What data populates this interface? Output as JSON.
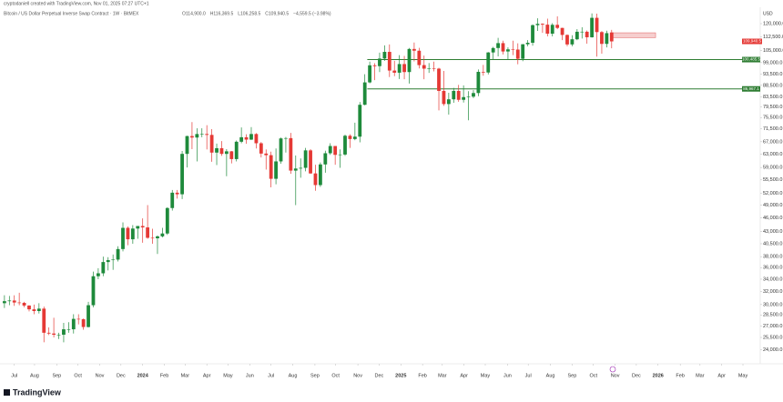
{
  "header": {
    "author_line": "cryptodaniell created with TradingView.com, Nov 01, 2025 07:27 UTC+1",
    "footer_brand": "TradingView"
  },
  "chart_data": {
    "type": "candlestick",
    "title": "Bitcoin / US Dollar Perpetual Inverse Swap Contract · 1W · BitMEX",
    "ohlc_text": [
      "O114,900.0",
      "H116,369.5",
      "L106,258.5",
      "C109,940.5",
      "−4,559.5 (−3.98%)"
    ],
    "currency": "USD",
    "log_scale": true,
    "up_color": "#1e8a3b",
    "down_color": "#e53935",
    "open": [
      30200,
      30500,
      30600,
      30300,
      30250,
      29850,
      29300,
      29050,
      29400,
      26100,
      26000,
      25850,
      25850,
      26550,
      26550,
      27950,
      27900,
      26850,
      29900,
      34500,
      35000,
      37000,
      37350,
      37450,
      39450,
      43800,
      41400,
      43650,
      44200,
      43900,
      41700,
      41600,
      42000,
      42600,
      48300,
      52100,
      51700,
      63100,
      68900,
      68400,
      69600,
      69600,
      69300,
      63500,
      64900,
      63100,
      63900,
      61500,
      67000,
      68500,
      67700,
      69600,
      66500,
      63200,
      62700,
      55800,
      60800,
      68100,
      68200,
      58100,
      58700,
      58900,
      64200,
      57300,
      54100,
      59900,
      63300,
      65600,
      62800,
      62900,
      69000,
      67900,
      68700,
      80400,
      89800,
      97700,
      97300,
      101000,
      104400,
      95200,
      94200,
      98300,
      94500,
      105900,
      105000,
      97800,
      96100,
      96300,
      96100,
      86100,
      80700,
      82600,
      86100,
      82400,
      83500,
      83700,
      85200,
      94600,
      94300,
      104100,
      106400,
      109000,
      104600,
      105700,
      105600,
      100900,
      108400,
      109200,
      119100,
      119900,
      119400,
      114200,
      119300,
      117500,
      113500,
      108300,
      111100,
      115300,
      115300,
      112200,
      123500,
      115100,
      108600,
      114900
    ],
    "high": [
      31400,
      31300,
      31400,
      31800,
      30400,
      29900,
      30000,
      30200,
      29700,
      26800,
      28100,
      26100,
      27400,
      27500,
      28600,
      28600,
      28000,
      30400,
      35300,
      35900,
      38000,
      37900,
      38400,
      40000,
      45000,
      44100,
      44400,
      44200,
      45900,
      49000,
      43600,
      42200,
      43800,
      48500,
      52800,
      52800,
      64000,
      69000,
      73800,
      71600,
      71600,
      72700,
      71300,
      66400,
      67200,
      64600,
      64000,
      67400,
      71900,
      69500,
      72000,
      69900,
      66900,
      64500,
      63800,
      64800,
      68400,
      68600,
      70000,
      62600,
      61700,
      65000,
      64600,
      59800,
      60500,
      64100,
      66500,
      65600,
      64500,
      69400,
      69500,
      73600,
      81500,
      93500,
      99500,
      98700,
      104000,
      107800,
      108300,
      99900,
      102700,
      102300,
      106400,
      109300,
      106500,
      102500,
      98800,
      99500,
      96500,
      95000,
      85300,
      87400,
      88700,
      88500,
      86000,
      86400,
      95700,
      97900,
      104300,
      107000,
      111900,
      110300,
      106800,
      110300,
      108900,
      108500,
      110600,
      119500,
      123200,
      120200,
      123000,
      120300,
      124400,
      117600,
      113800,
      113300,
      116800,
      117900,
      116000,
      126200,
      126100,
      115700,
      115900,
      116369.5
    ],
    "low": [
      29500,
      29900,
      29800,
      29900,
      29600,
      29000,
      28600,
      28700,
      24900,
      25800,
      25500,
      25300,
      24900,
      26100,
      26000,
      27200,
      26500,
      26800,
      29600,
      34000,
      34500,
      35500,
      35600,
      37100,
      39000,
      40200,
      40500,
      41500,
      40700,
      41500,
      40500,
      38500,
      41800,
      42300,
      47700,
      50600,
      50500,
      59000,
      64600,
      60800,
      68500,
      64500,
      60700,
      59700,
      62500,
      56500,
      60200,
      60800,
      66500,
      66300,
      67600,
      64800,
      62000,
      58400,
      53500,
      54300,
      60100,
      63500,
      57200,
      49000,
      56100,
      57900,
      57200,
      52600,
      53600,
      57500,
      62800,
      59800,
      58900,
      62500,
      65000,
      67500,
      66800,
      80200,
      89400,
      90800,
      94500,
      99900,
      92200,
      92600,
      91300,
      91200,
      89300,
      99600,
      96200,
      91200,
      94100,
      94800,
      78200,
      80000,
      76600,
      81200,
      81600,
      81300,
      74500,
      83100,
      83900,
      92800,
      93400,
      100700,
      102100,
      103100,
      100400,
      102700,
      98200,
      99700,
      107300,
      107600,
      115800,
      114700,
      112700,
      112700,
      116800,
      110600,
      107300,
      107300,
      110600,
      111500,
      108700,
      112000,
      102000,
      103500,
      106700,
      106258.5
    ],
    "close": [
      30500,
      30600,
      30300,
      30250,
      29850,
      29300,
      29050,
      29400,
      26100,
      26000,
      25850,
      25850,
      26550,
      26550,
      27950,
      27900,
      26850,
      29900,
      34500,
      35000,
      37000,
      37350,
      37450,
      39450,
      43800,
      41400,
      43650,
      44200,
      43900,
      41700,
      41600,
      42000,
      42600,
      48300,
      52100,
      51700,
      63100,
      68900,
      68400,
      69600,
      69600,
      69300,
      63500,
      64900,
      63100,
      63900,
      61500,
      67000,
      68500,
      67700,
      69600,
      66500,
      63200,
      62700,
      55800,
      60800,
      68100,
      68200,
      58100,
      58700,
      58900,
      64200,
      57300,
      54100,
      59900,
      63300,
      65600,
      62800,
      62900,
      69000,
      67900,
      68700,
      80400,
      89800,
      97700,
      97300,
      101000,
      104400,
      95200,
      94200,
      98300,
      94500,
      105900,
      105000,
      97800,
      96100,
      96300,
      96100,
      86100,
      80700,
      82600,
      86100,
      82400,
      83500,
      83700,
      85200,
      94600,
      94300,
      104100,
      106400,
      109000,
      104600,
      105700,
      105600,
      100900,
      108400,
      109200,
      119100,
      119900,
      119400,
      114200,
      119300,
      117500,
      113500,
      108300,
      111100,
      115300,
      115300,
      112200,
      123500,
      115100,
      108600,
      114500,
      109940.5
    ],
    "last_price_label": "109,940.5",
    "levels": [
      {
        "value": 100485.5,
        "label": "100,485.5",
        "start_x": 73.5,
        "color": "#2e7d32"
      },
      {
        "value": 86967.1,
        "label": "86,967.1",
        "start_x": 73.5,
        "color": "#2e7d32"
      }
    ],
    "zone": {
      "low": 112000,
      "high": 114700,
      "start_x": 123,
      "end_x": 131.9,
      "color": "#e57373"
    },
    "xlim": [
      -0.9,
      153.1
    ],
    "xticks": [
      {
        "value": 2,
        "label": "Jul"
      },
      {
        "value": 6.1,
        "label": "Aug"
      },
      {
        "value": 10.6,
        "label": "Sep"
      },
      {
        "value": 14.9,
        "label": "Oct"
      },
      {
        "value": 19.3,
        "label": "Nov"
      },
      {
        "value": 23.6,
        "label": "Dec"
      },
      {
        "value": 28,
        "label": "2024"
      },
      {
        "value": 32.4,
        "label": "Feb"
      },
      {
        "value": 36.6,
        "label": "Mar"
      },
      {
        "value": 41,
        "label": "Apr"
      },
      {
        "value": 45.3,
        "label": "May"
      },
      {
        "value": 49.7,
        "label": "Jun"
      },
      {
        "value": 54,
        "label": "Jul"
      },
      {
        "value": 58.4,
        "label": "Aug"
      },
      {
        "value": 62.9,
        "label": "Sep"
      },
      {
        "value": 67.1,
        "label": "Oct"
      },
      {
        "value": 71.6,
        "label": "Nov"
      },
      {
        "value": 75.9,
        "label": "Dec"
      },
      {
        "value": 80.3,
        "label": "2025"
      },
      {
        "value": 84.7,
        "label": "Feb"
      },
      {
        "value": 88.7,
        "label": "Mar"
      },
      {
        "value": 93.1,
        "label": "Apr"
      },
      {
        "value": 97.4,
        "label": "May"
      },
      {
        "value": 101.9,
        "label": "Jun"
      },
      {
        "value": 106.1,
        "label": "Jul"
      },
      {
        "value": 110.6,
        "label": "Aug"
      },
      {
        "value": 115,
        "label": "Sep"
      },
      {
        "value": 119.3,
        "label": "Oct"
      },
      {
        "value": 123.7,
        "label": "Nov"
      },
      {
        "value": 128,
        "label": "Dec"
      },
      {
        "value": 132.4,
        "label": "2026"
      },
      {
        "value": 136.9,
        "label": "Feb"
      },
      {
        "value": 140.9,
        "label": "Mar"
      },
      {
        "value": 145.3,
        "label": "Apr"
      },
      {
        "value": 149.6,
        "label": "May"
      }
    ],
    "ylim": [
      22900,
      130100
    ],
    "yticks": [
      {
        "value": 120000,
        "label": "120,000.0"
      },
      {
        "value": 112500,
        "label": "112,500.0"
      },
      {
        "value": 105000,
        "label": "105,000.0"
      },
      {
        "value": 99000,
        "label": "99,000.0"
      },
      {
        "value": 93500,
        "label": "93,500.0"
      },
      {
        "value": 88500,
        "label": "88,500.0"
      },
      {
        "value": 83500,
        "label": "83,500.0"
      },
      {
        "value": 79500,
        "label": "79,500.0"
      },
      {
        "value": 75500,
        "label": "75,500.0"
      },
      {
        "value": 71500,
        "label": "71,500.0"
      },
      {
        "value": 67000,
        "label": "67,000.0"
      },
      {
        "value": 63000,
        "label": "63,000.0"
      },
      {
        "value": 59000,
        "label": "59,000.0"
      },
      {
        "value": 55500,
        "label": "55,500.0"
      },
      {
        "value": 52000,
        "label": "52,000.0"
      },
      {
        "value": 49000,
        "label": "49,000.0"
      },
      {
        "value": 46000,
        "label": "46,000.0"
      },
      {
        "value": 43000,
        "label": "43,000.0"
      },
      {
        "value": 40500,
        "label": "40,500.0"
      },
      {
        "value": 38000,
        "label": "38,000.0"
      },
      {
        "value": 36000,
        "label": "36,000.0"
      },
      {
        "value": 34000,
        "label": "34,000.0"
      },
      {
        "value": 32000,
        "label": "32,000.0"
      },
      {
        "value": 30000,
        "label": "30,000.0"
      },
      {
        "value": 28500,
        "label": "28,500.0"
      },
      {
        "value": 27000,
        "label": "27,000.0"
      },
      {
        "value": 25500,
        "label": "25,500.0"
      },
      {
        "value": 24000,
        "label": "24,000.0"
      }
    ]
  }
}
